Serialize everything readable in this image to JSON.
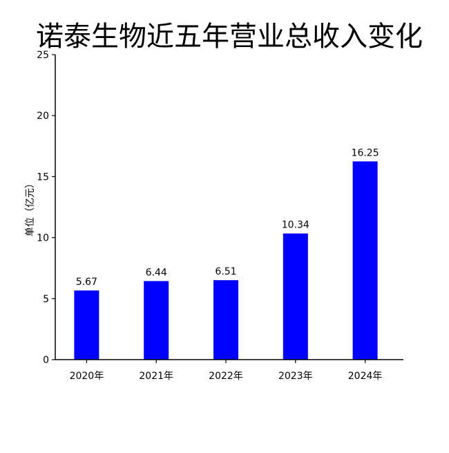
{
  "chart_data": {
    "type": "bar",
    "title": "诺泰生物近五年营业总收入变化",
    "ylabel": "单位（亿元）",
    "xlabel": "",
    "categories": [
      "2020年",
      "2021年",
      "2022年",
      "2023年",
      "2024年"
    ],
    "values": [
      5.67,
      6.44,
      6.51,
      10.34,
      16.25
    ],
    "data_labels": [
      "5.67",
      "6.44",
      "6.51",
      "10.34",
      "16.25"
    ],
    "ylim": [
      0,
      25
    ],
    "yticks": [
      0,
      5,
      10,
      15,
      20,
      25
    ],
    "bar_color": "#0000ff",
    "grid": false,
    "legend": "none"
  }
}
